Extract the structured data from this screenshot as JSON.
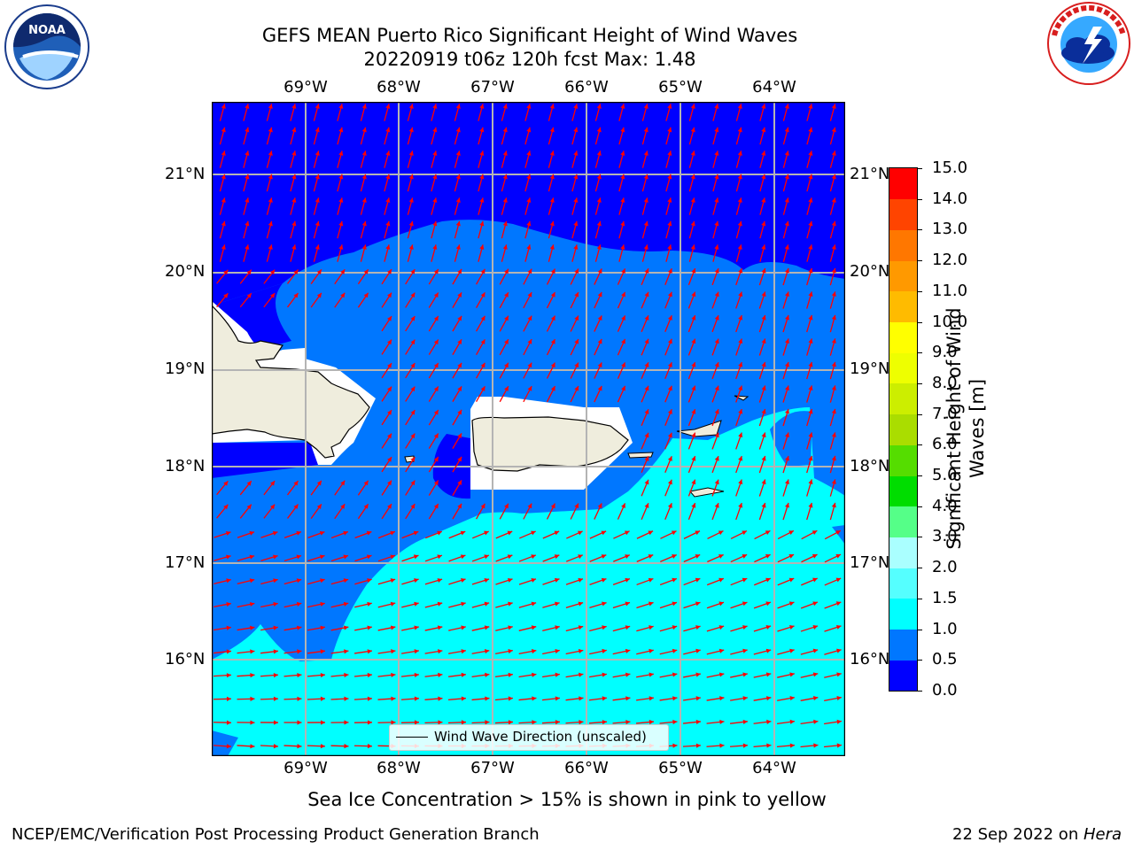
{
  "title_line1": "GEFS MEAN Puerto Rico Significant Height of Wind Waves",
  "title_line2": "20220919 t06z 120h fcst   Max: 1.48",
  "longitude_labels": [
    "69°W",
    "68°W",
    "67°W",
    "66°W",
    "65°W",
    "64°W"
  ],
  "latitude_labels": [
    "21°N",
    "20°N",
    "19°N",
    "18°N",
    "17°N",
    "16°N"
  ],
  "legend_label": "Wind Wave Direction (unscaled)",
  "colorbar": {
    "label_line1": "Significant Height of Wind",
    "label_line2": "Waves [m]",
    "ticks": [
      "0.0",
      "0.5",
      "1.0",
      "1.5",
      "2.0",
      "3.0",
      "4.0",
      "5.0",
      "6.0",
      "7.0",
      "8.0",
      "9.0",
      "10.0",
      "11.0",
      "12.0",
      "13.0",
      "14.0",
      "15.0"
    ],
    "colors": [
      "#0000ff",
      "#0077ff",
      "#00ffff",
      "#55ffff",
      "#aaffff",
      "#55ff88",
      "#00dd00",
      "#55dd00",
      "#aadd00",
      "#ccee00",
      "#eeff00",
      "#ffff00",
      "#ffbb00",
      "#ff9900",
      "#ff7700",
      "#ff4400",
      "#ff0000"
    ]
  },
  "ice_note": "Sea Ice Concentration > 15% is shown in pink to yellow",
  "footer_left": "NCEP/EMC/Verification Post Processing Product Generation Branch",
  "footer_right_date": "22 Sep 2022 on ",
  "footer_right_machine": "Hera",
  "logos": {
    "left": "noaa-logo",
    "left_text": "NOAA",
    "right": "nws-logo"
  },
  "colors": {
    "land": "#efeddd",
    "arrow": "#ff0000",
    "grid": "#b4b4b4"
  }
}
